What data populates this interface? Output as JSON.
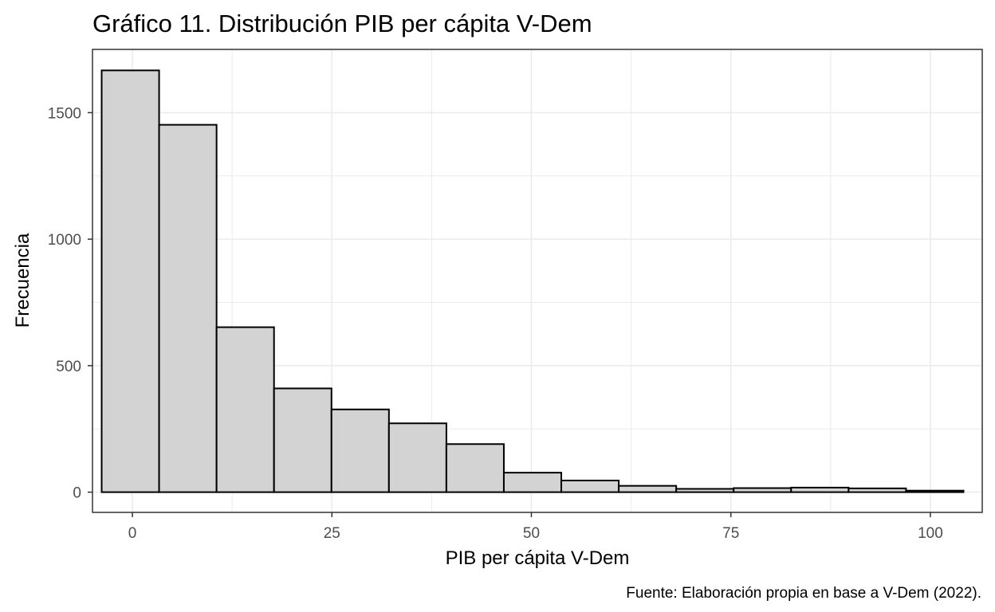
{
  "chart_data": {
    "type": "bar",
    "title": "Gráfico 11. Distribución PIB per cápita V-Dem",
    "xlabel": "PIB per cápita V-Dem",
    "ylabel": "Frecuencia",
    "caption": "Fuente: Elaboración propia en base a V-Dem (2022).",
    "xlim": [
      -5,
      106.5
    ],
    "ylim": [
      -80,
      1750
    ],
    "x_ticks": [
      0,
      25,
      50,
      75,
      100
    ],
    "y_ticks": [
      0,
      500,
      1000,
      1500
    ],
    "x_tick_labels": [
      "0",
      "25",
      "50",
      "75",
      "100"
    ],
    "y_tick_labels": [
      "0",
      "500",
      "1000",
      "1500"
    ],
    "bin_width": 7.2,
    "bin_start": -3.85,
    "values": [
      1667,
      1452,
      652,
      410,
      327,
      272,
      190,
      77,
      46,
      25,
      13,
      16,
      18,
      15,
      6
    ],
    "bar_fill": "#d3d3d3",
    "bar_stroke": "#000000",
    "grid": true,
    "grid_color": "#ebebeb",
    "legend": "none"
  }
}
